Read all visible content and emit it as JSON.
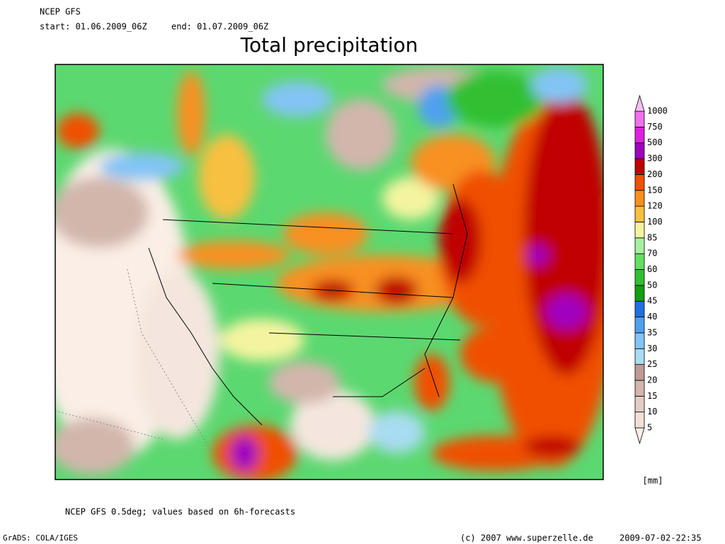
{
  "header": {
    "model": "NCEP GFS",
    "start": "start: 01.06.2009_06Z",
    "end": "end: 01.07.2009_06Z",
    "title": "Total precipitation"
  },
  "colorbar": {
    "labels": [
      5,
      10,
      15,
      20,
      25,
      30,
      35,
      40,
      45,
      50,
      60,
      70,
      85,
      100,
      120,
      150,
      200,
      300,
      500,
      750,
      1000
    ],
    "colors": [
      "#faeee6",
      "#f0e0d6",
      "#e4cdc4",
      "#d2b6ac",
      "#bc9c94",
      "#a8dcf0",
      "#82c4f4",
      "#50a0f0",
      "#2070e0",
      "#10a010",
      "#30c030",
      "#60e060",
      "#a8f0a0",
      "#f4f4a0",
      "#f8c040",
      "#f89020",
      "#f05000",
      "#c00000",
      "#a000c0",
      "#e020e0",
      "#f070f0",
      "#f8c0f8"
    ],
    "unit": "[mm]"
  },
  "footer": {
    "note": "NCEP GFS 0.5deg; values based on 6h-forecasts",
    "software": "GrADS: COLA/IGES",
    "copyright": "(c) 2007 www.superzelle.de",
    "timestamp": "2009-07-02-22:35"
  }
}
